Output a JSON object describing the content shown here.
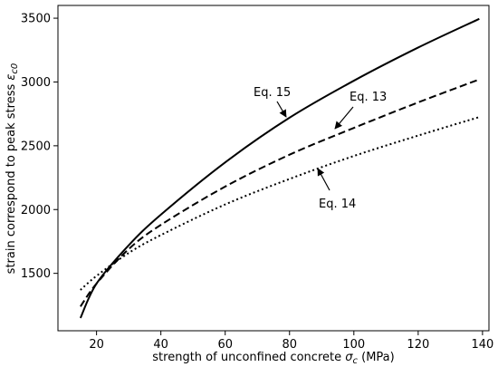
{
  "chart_data": {
    "type": "line",
    "xlabel": "strength of unconfined concrete σc   (MPa)",
    "ylabel": "strain correspond to peak stress εc0",
    "xlim": [
      8,
      142
    ],
    "ylim": [
      1050,
      3600
    ],
    "xticks": [
      20,
      40,
      60,
      80,
      100,
      120,
      140
    ],
    "yticks": [
      1500,
      2000,
      2500,
      3000,
      3500
    ],
    "grid": false,
    "legend": "none",
    "series": [
      {
        "name": "Eq. 15",
        "style": "solid",
        "color": "#000000",
        "x": [
          15,
          20,
          30,
          40,
          60,
          80,
          100,
          120,
          139
        ],
        "y": [
          1150,
          1420,
          1720,
          1960,
          2370,
          2720,
          3010,
          3270,
          3495
        ]
      },
      {
        "name": "Eq. 13",
        "style": "dashed",
        "color": "#000000",
        "x": [
          15,
          20,
          30,
          40,
          60,
          80,
          100,
          120,
          139
        ],
        "y": [
          1240,
          1420,
          1690,
          1880,
          2180,
          2430,
          2640,
          2840,
          3020
        ]
      },
      {
        "name": "Eq. 14",
        "style": "dotted",
        "color": "#000000",
        "x": [
          15,
          20,
          30,
          40,
          60,
          80,
          100,
          120,
          139
        ],
        "y": [
          1370,
          1480,
          1660,
          1800,
          2040,
          2240,
          2420,
          2580,
          2725
        ]
      }
    ],
    "annotations": [
      {
        "text": "Eq. 15",
        "at": [
          80,
          2680
        ]
      },
      {
        "text": "Eq. 13",
        "at": [
          95,
          2620
        ]
      },
      {
        "text": "Eq. 14",
        "at": [
          91,
          2310
        ]
      }
    ]
  }
}
